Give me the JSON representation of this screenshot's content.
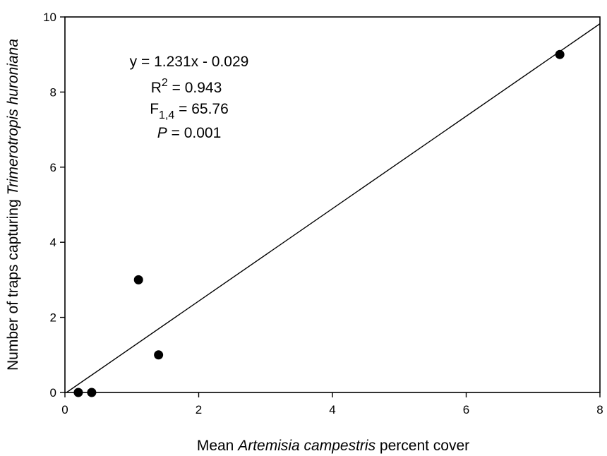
{
  "chart_data": {
    "type": "scatter",
    "xlabel": {
      "prefix": "Mean ",
      "species": "Artemisia campestris",
      "suffix": " percent cover"
    },
    "ylabel": {
      "prefix": "Number of traps capturing ",
      "species": "Trimerotropis huroniana"
    },
    "xlim": [
      0,
      8
    ],
    "ylim": [
      0,
      10
    ],
    "x_ticks": [
      0,
      2,
      4,
      6,
      8
    ],
    "y_ticks": [
      0,
      2,
      4,
      6,
      8,
      10
    ],
    "grid": false,
    "series": [
      {
        "x": [
          0.2,
          0.4,
          1.1,
          1.4,
          7.4
        ],
        "y": [
          0,
          0,
          3,
          1,
          9
        ]
      }
    ],
    "regression": {
      "slope": 1.231,
      "intercept": -0.029
    },
    "annotations": {
      "equation": "y = 1.231x - 0.029",
      "r2_base": "R",
      "r2_sup": "2",
      "r2_value": " = 0.943",
      "f_base": "F",
      "f_sub": "1,4",
      "f_value": " = 65.76",
      "p_base": "P",
      "p_value": " = 0.001"
    },
    "colors": {
      "marker": "#000000",
      "line": "#000000",
      "axis": "#000000"
    }
  }
}
